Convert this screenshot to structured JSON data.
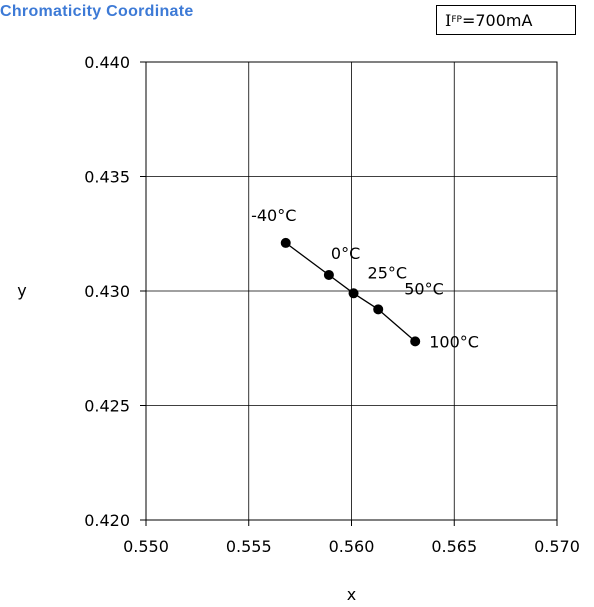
{
  "chart_data": {
    "type": "line",
    "title": "Chromaticity Coordinate",
    "condition": {
      "variable": "I",
      "subscript": "FP",
      "value": "=700mA"
    },
    "xlabel": "x",
    "ylabel": "y",
    "xlim": [
      0.55,
      0.57
    ],
    "ylim": [
      0.42,
      0.44
    ],
    "x_ticks": [
      "0.550",
      "0.555",
      "0.560",
      "0.565",
      "0.570"
    ],
    "y_ticks": [
      "0.420",
      "0.425",
      "0.430",
      "0.435",
      "0.440"
    ],
    "grid": true,
    "line_color": "#000000",
    "series": [
      {
        "points": [
          {
            "label": "-40°C",
            "x": 0.5568,
            "y": 0.4321
          },
          {
            "label": "0°C",
            "x": 0.5589,
            "y": 0.4307
          },
          {
            "label": "25°C",
            "x": 0.5601,
            "y": 0.4299
          },
          {
            "label": "50°C",
            "x": 0.5613,
            "y": 0.4292
          },
          {
            "label": "100°C",
            "x": 0.5631,
            "y": 0.4278
          }
        ]
      }
    ]
  }
}
